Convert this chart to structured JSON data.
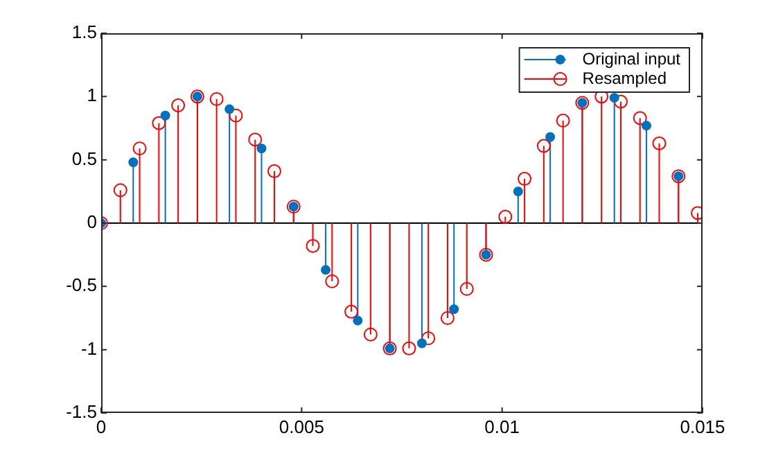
{
  "chart_data": {
    "type": "lollipop",
    "legend": "top right",
    "marker": "circle",
    "xlim": [
      0,
      0.015
    ],
    "xticks": [
      0,
      0.005,
      0.01,
      0.015
    ],
    "ylim": [
      -1.5,
      1.5
    ],
    "yticks": [
      -1.5,
      -1,
      -0.5,
      0,
      0.5,
      1,
      1.5
    ],
    "series": [
      {
        "name": "Original input",
        "color": "#0072bd",
        "x": [
          0,
          0.0008,
          0.0016,
          0.0024,
          0.0032,
          0.004,
          0.0048,
          0.0056,
          0.0064,
          0.0072,
          0.008,
          0.0088,
          0.0096,
          0.0104,
          0.0112,
          0.012,
          0.0128,
          0.0136,
          0.0144
        ],
        "values": [
          0,
          0.48,
          0.85,
          1,
          0.9,
          0.59,
          0.13,
          -0.37,
          -0.77,
          -0.99,
          -0.95,
          -0.68,
          -0.25,
          0.25,
          0.68,
          0.95,
          0.99,
          0.77,
          0.37
        ]
      },
      {
        "name": "Resampled",
        "color": "#ff0000",
        "x": [
          0,
          0.00048,
          0.00096,
          0.00144,
          0.00192,
          0.0024,
          0.00288,
          0.00336,
          0.00384,
          0.00432,
          0.0048,
          0.00528,
          0.00576,
          0.00624,
          0.00672,
          0.0072,
          0.00768,
          0.00816,
          0.00864,
          0.00912,
          0.0096,
          0.01008,
          0.01056,
          0.01104,
          0.01152,
          0.012,
          0.01248,
          0.01296,
          0.01344,
          0.01392,
          0.0144,
          0.01488
        ],
        "values": [
          0,
          0.26,
          0.59,
          0.79,
          0.93,
          1,
          0.98,
          0.85,
          0.66,
          0.41,
          0.13,
          -0.18,
          -0.46,
          -0.7,
          -0.88,
          -0.99,
          -0.99,
          -0.91,
          -0.75,
          -0.52,
          -0.25,
          0.05,
          0.35,
          0.61,
          0.81,
          0.95,
          1,
          0.96,
          0.83,
          0.63,
          0.37,
          0.08
        ]
      }
    ]
  }
}
